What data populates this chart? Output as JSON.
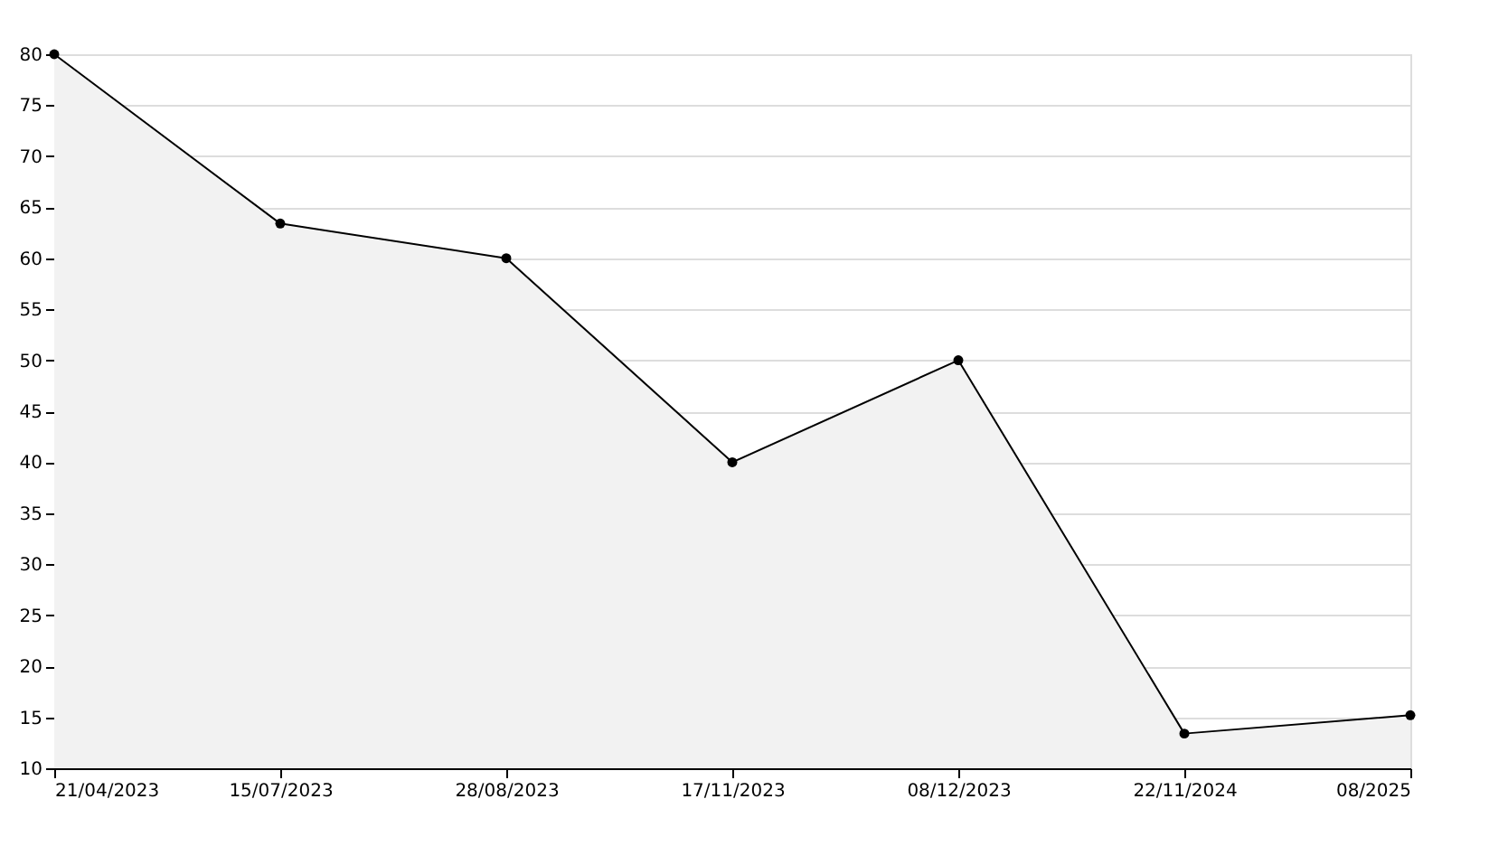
{
  "chart_data": {
    "type": "area",
    "categories": [
      "21/04/2023",
      "15/07/2023",
      "28/08/2023",
      "17/11/2023",
      "08/12/2023",
      "22/11/2024",
      "08/2025"
    ],
    "series": [
      {
        "color": "#000000",
        "values": [
          80,
          63.4,
          60,
          40,
          50,
          13.4,
          15.2
        ]
      }
    ],
    "ylim": [
      10,
      80
    ],
    "yticks": [
      10,
      15,
      20,
      25,
      30,
      35,
      40,
      45,
      50,
      55,
      60,
      65,
      70,
      75,
      80
    ],
    "grid": "y",
    "marker": "circle",
    "line_style": "solid"
  }
}
